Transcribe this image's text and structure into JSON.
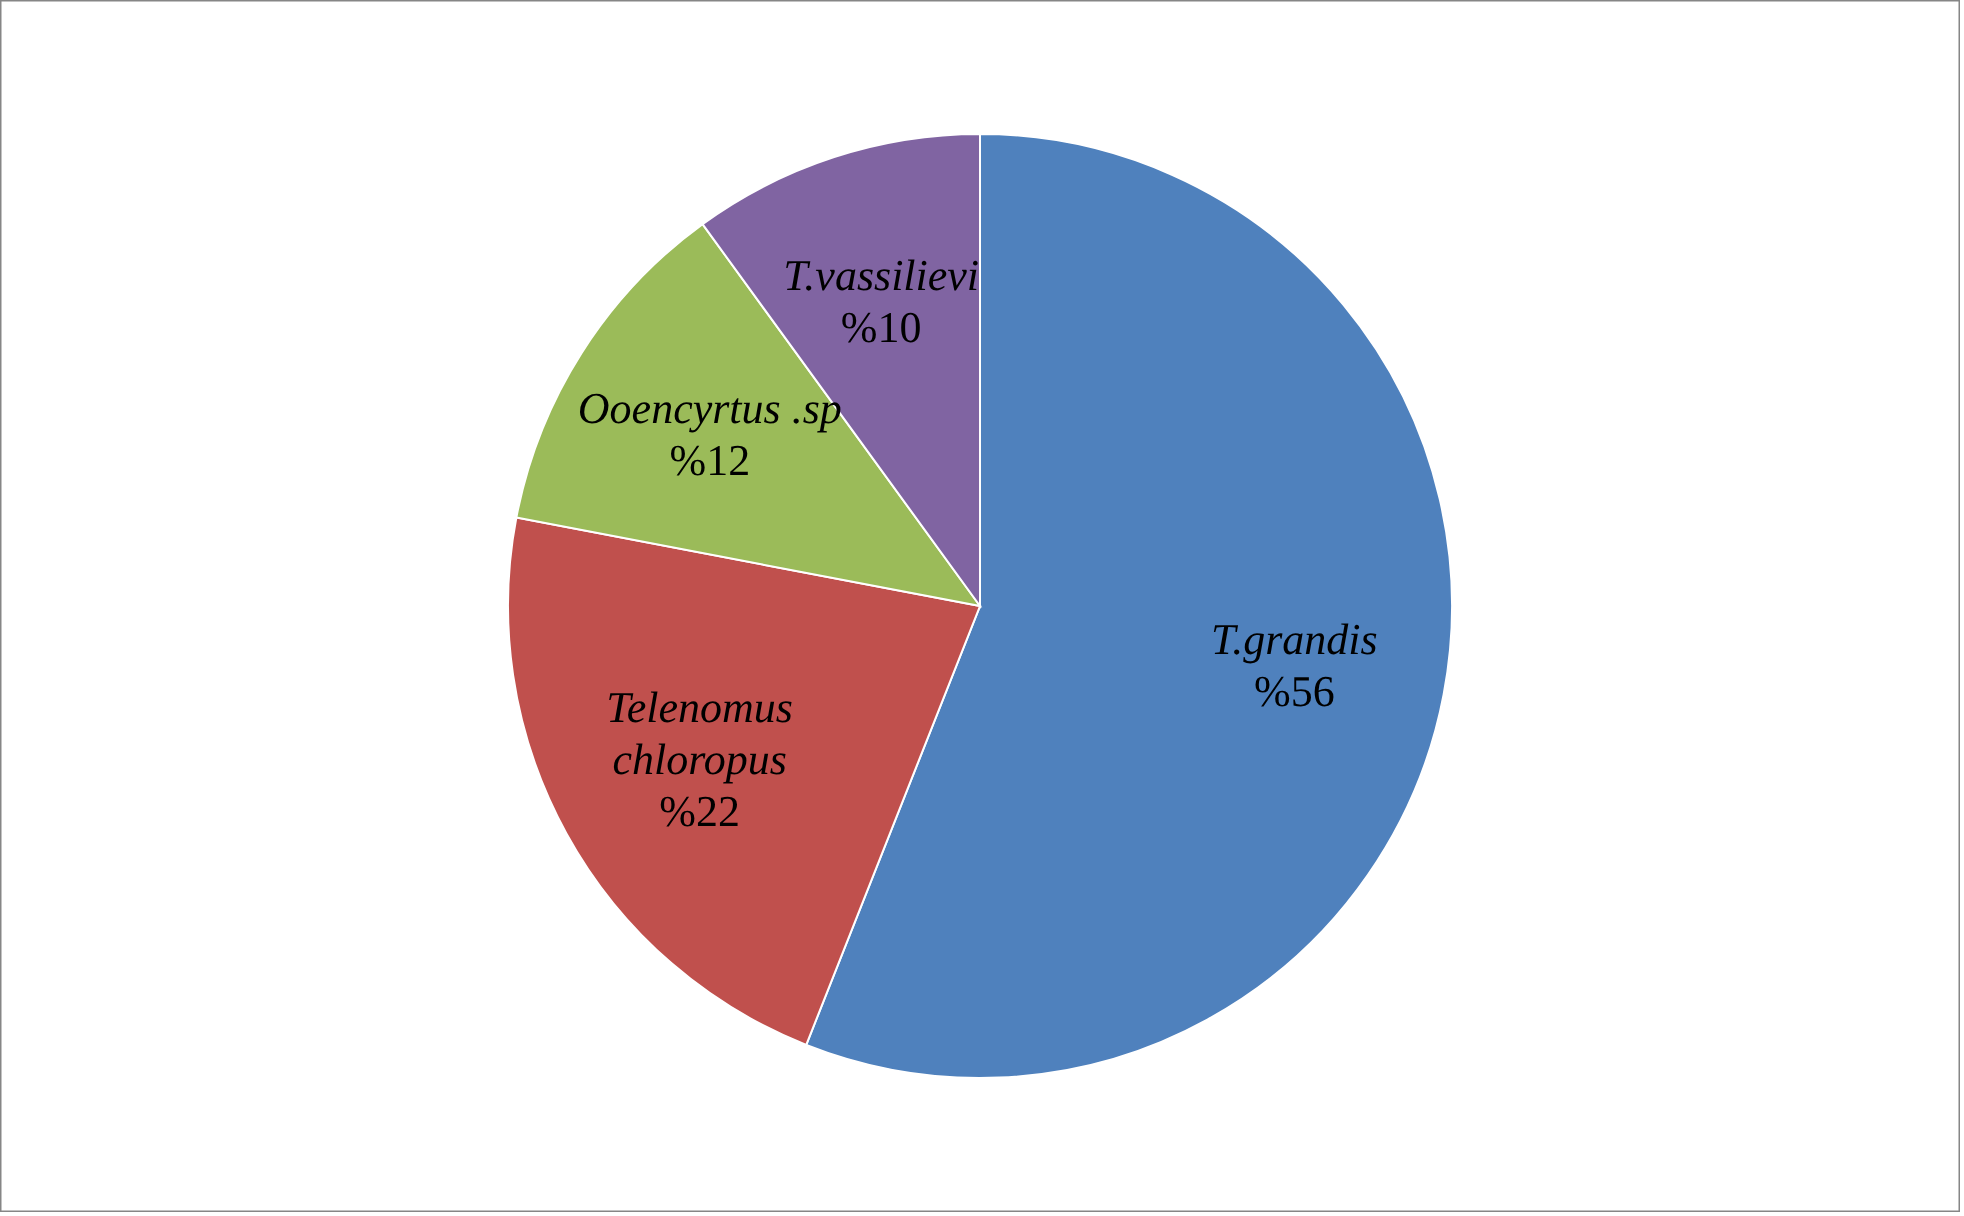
{
  "chart_data": {
    "type": "pie",
    "categories": [
      "T.grandis",
      "Telenomus chloropus",
      "Ooencyrtus .sp",
      "T.vassilievi"
    ],
    "values": [
      56,
      22,
      12,
      10
    ],
    "colors": [
      "#4f81bd",
      "#c0504d",
      "#9bbb59",
      "#8064a2"
    ],
    "value_labels": [
      "%56",
      "%22",
      "%12",
      "%10"
    ]
  }
}
